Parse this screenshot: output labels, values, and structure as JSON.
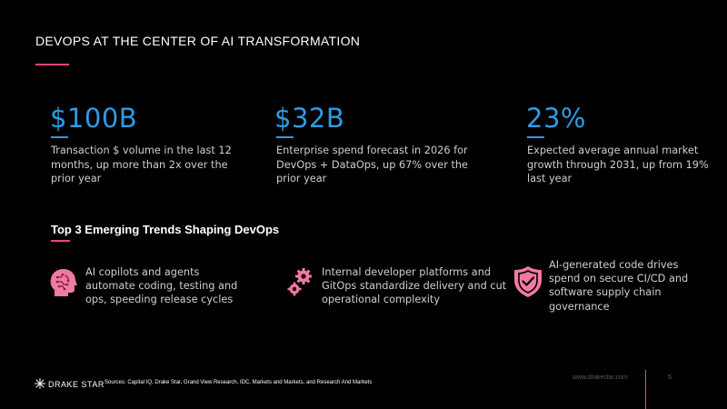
{
  "slide": {
    "title": "DEVOPS AT THE CENTER OF AI TRANSFORMATION"
  },
  "stats": [
    {
      "value": "$100B",
      "description": "Transaction $ volume in the last 12 months, up more than 2x over the prior year"
    },
    {
      "value": "$32B",
      "description": "Enterprise spend forecast in 2026 for DevOps + DataOps, up 67% over the prior year"
    },
    {
      "value": "23%",
      "description": "Expected average annual market growth through 2031, up from 19% last year"
    }
  ],
  "trends": {
    "heading": "Top 3 Emerging Trends Shaping DevOps",
    "items": [
      {
        "icon": "ai-head-icon",
        "text": "AI copilots and agents automate coding, testing and ops, speeding release cycles"
      },
      {
        "icon": "gears-icon",
        "text": "Internal developer platforms and GitOps standardize delivery and cut operational complexity"
      },
      {
        "icon": "shield-check-icon",
        "text": "AI-generated code drives spend on secure CI/CD and software supply chain governance"
      }
    ]
  },
  "footer": {
    "logo_text": "DRAKE STAR",
    "sources": "Sources: Capital IQ, Drake Star, Grand View Research, IDC, Markets and Markets, and Research And Markets",
    "website": "www.drakestar.com",
    "page_number": "5"
  },
  "colors": {
    "accent_pink": "#e8457a",
    "accent_blue": "#2f9be3",
    "background": "#000000"
  }
}
